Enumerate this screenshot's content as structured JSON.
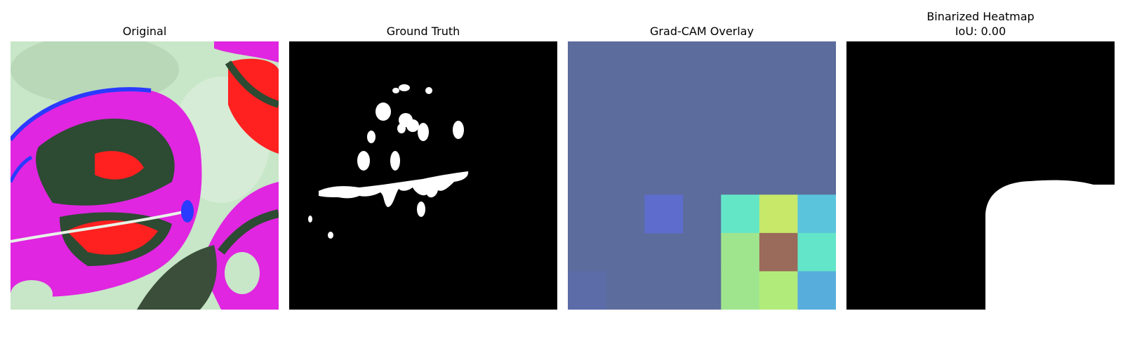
{
  "panels": [
    {
      "title": "Original"
    },
    {
      "title": "Ground Truth"
    },
    {
      "title": "Grad-CAM Overlay"
    },
    {
      "title": "Binarized Heatmap",
      "subtitle": "IoU: 0.00"
    }
  ],
  "gradcam_grid": {
    "rows": 7,
    "cols": 7,
    "base_color": "#5c6c9c",
    "cells": [
      {
        "row": 4,
        "col": 2,
        "color": "#5e6ccd"
      },
      {
        "row": 4,
        "col": 4,
        "color": "#63e6c6"
      },
      {
        "row": 4,
        "col": 5,
        "color": "#c8e86a"
      },
      {
        "row": 4,
        "col": 6,
        "color": "#59c4dc"
      },
      {
        "row": 5,
        "col": 4,
        "color": "#9fe58e"
      },
      {
        "row": 5,
        "col": 5,
        "color": "#9a6a5a"
      },
      {
        "row": 5,
        "col": 6,
        "color": "#62e5c8"
      },
      {
        "row": 6,
        "col": 0,
        "color": "#5c6ca8"
      },
      {
        "row": 6,
        "col": 4,
        "color": "#9fe58e"
      },
      {
        "row": 6,
        "col": 5,
        "color": "#b1ec7a"
      },
      {
        "row": 6,
        "col": 6,
        "color": "#57aedc"
      }
    ]
  },
  "colors": {
    "mask_background": "#000000",
    "mask_foreground": "#ffffff",
    "leaf_background": "#c8e8c8",
    "leaf_magenta": "#e020e0",
    "leaf_dark": "#2a4a30",
    "leaf_red": "#ff1a1a",
    "leaf_blue": "#2a3aff"
  }
}
